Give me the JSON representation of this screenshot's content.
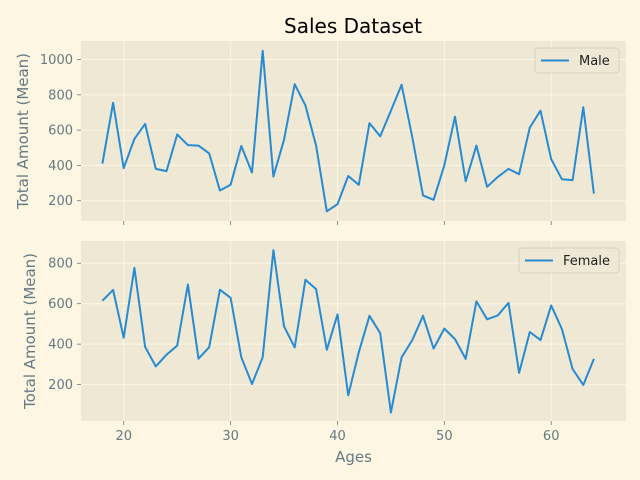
{
  "colors": {
    "figure_bg": "#fdf6e3",
    "axes_bg": "#eee8d5",
    "grid": "#fdf6e3",
    "line": "#268bd2",
    "axis_text": "#657b83",
    "title_text": "#000000"
  },
  "chart_data": {
    "type": "line",
    "title": "Sales Dataset",
    "xlabel": "Ages",
    "x": [
      18,
      19,
      20,
      21,
      22,
      23,
      24,
      25,
      26,
      27,
      28,
      29,
      30,
      31,
      32,
      33,
      34,
      35,
      36,
      37,
      38,
      39,
      40,
      41,
      42,
      43,
      44,
      45,
      46,
      47,
      48,
      49,
      50,
      51,
      52,
      53,
      54,
      55,
      56,
      57,
      58,
      59,
      60,
      61,
      62,
      63,
      64
    ],
    "xlim": [
      16,
      67
    ],
    "xticks": [
      20,
      30,
      40,
      50,
      60
    ],
    "shared_x": true,
    "grid": true,
    "subplots": [
      {
        "ylabel": "Total Amount (Mean)",
        "ylim": [
          85,
          1105
        ],
        "yticks": [
          200,
          400,
          600,
          800,
          1000
        ],
        "legend_position": "top-right",
        "series": [
          {
            "name": "Male",
            "values": [
              410,
              755,
              385,
              550,
              635,
              380,
              368,
              575,
              515,
              512,
              468,
              258,
              290,
              510,
              360,
              1050,
              337,
              545,
              860,
              740,
              512,
              140,
              180,
              340,
              290,
              640,
              565,
              710,
              857,
              560,
              230,
              205,
              400,
              676,
              310,
              512,
              279,
              335,
              380,
              350,
              615,
              710,
              435,
              322,
              317,
              730,
              240
            ]
          }
        ]
      },
      {
        "ylabel": "Total Amount (Mean)",
        "ylim": [
          20,
          910
        ],
        "yticks": [
          200,
          400,
          600,
          800
        ],
        "legend_position": "top-right",
        "series": [
          {
            "name": "Female",
            "values": [
              615,
              668,
              432,
              777,
              387,
              290,
              348,
              393,
              695,
              328,
              385,
              669,
              629,
              335,
              203,
              335,
              865,
              488,
              384,
              718,
              672,
              372,
              547,
              147,
              360,
              540,
              454,
              62,
              335,
              420,
              540,
              378,
              477,
              425,
              327,
              612,
              523,
              542,
              604,
              258,
              460,
              420,
              591,
              475,
              277,
              198,
              327
            ]
          }
        ]
      }
    ]
  }
}
